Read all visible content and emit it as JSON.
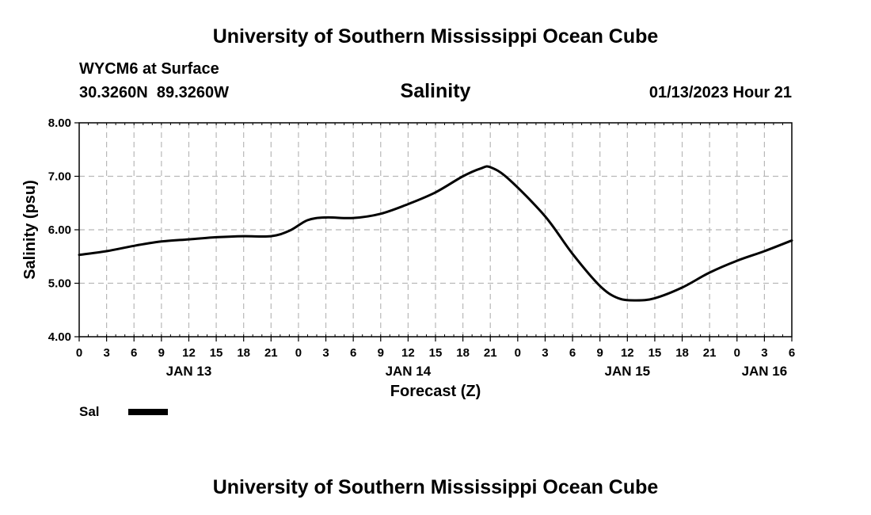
{
  "header": {
    "title": "University of Southern Mississippi Ocean Cube",
    "station": "WYCM6 at Surface",
    "coords": "30.3260N  89.3260W",
    "datetime": "01/13/2023 Hour 21"
  },
  "footer": {
    "title": "University of Southern Mississippi Ocean Cube"
  },
  "legend": {
    "label": "Sal",
    "color": "#000000"
  },
  "chart_data": {
    "type": "line",
    "title": "Salinity",
    "xlabel": "Forecast (Z)",
    "ylabel": "Salinity (psu)",
    "ylim": [
      4.0,
      8.0
    ],
    "xlim": [
      0,
      78
    ],
    "grid": true,
    "yticks": [
      4.0,
      5.0,
      6.0,
      7.0,
      8.0
    ],
    "ytick_labels": [
      "4.00",
      "5.00",
      "6.00",
      "7.00",
      "8.00"
    ],
    "xticks": [
      0,
      3,
      6,
      9,
      12,
      15,
      18,
      21,
      24,
      27,
      30,
      33,
      36,
      39,
      42,
      45,
      48,
      51,
      54,
      57,
      60,
      63,
      66,
      69,
      72,
      75,
      78
    ],
    "xtick_labels": [
      "0",
      "3",
      "6",
      "9",
      "12",
      "15",
      "18",
      "21",
      "0",
      "3",
      "6",
      "9",
      "12",
      "15",
      "18",
      "21",
      "0",
      "3",
      "6",
      "9",
      "12",
      "15",
      "18",
      "21",
      "0",
      "3",
      "6"
    ],
    "day_labels": [
      {
        "x": 12,
        "label": "JAN 13"
      },
      {
        "x": 36,
        "label": "JAN 14"
      },
      {
        "x": 60,
        "label": "JAN 15"
      },
      {
        "x": 75,
        "label": "JAN 16"
      }
    ],
    "series": [
      {
        "name": "Sal",
        "x": [
          0,
          3,
          6,
          9,
          12,
          15,
          18,
          21,
          23,
          25,
          27,
          30,
          33,
          36,
          39,
          42,
          44,
          45,
          47,
          51,
          54,
          57,
          59,
          61,
          63,
          66,
          69,
          72,
          75,
          78
        ],
        "y": [
          5.53,
          5.6,
          5.7,
          5.78,
          5.82,
          5.86,
          5.88,
          5.88,
          5.98,
          6.18,
          6.23,
          6.22,
          6.3,
          6.48,
          6.7,
          7.0,
          7.15,
          7.17,
          6.95,
          6.25,
          5.55,
          4.95,
          4.72,
          4.68,
          4.72,
          4.92,
          5.2,
          5.42,
          5.6,
          5.8
        ]
      }
    ]
  }
}
